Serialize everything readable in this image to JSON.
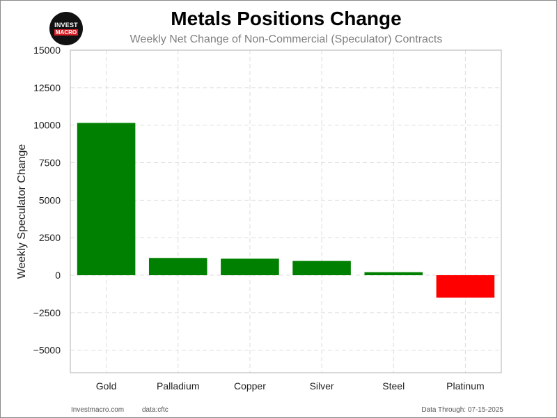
{
  "logo": {
    "line1": "INVEST",
    "line2": "MACRO"
  },
  "footer": {
    "site": "Investmacro.com",
    "source": "data:cftc",
    "through": "Data Through: 07-15-2025"
  },
  "colors": {
    "positive": "#008000",
    "negative": "#ff0000",
    "grid": "#dddddd"
  },
  "chart_data": {
    "type": "bar",
    "title": "Metals Positions Change",
    "subtitle": "Weekly Net Change of Non-Commercial (Speculator) Contracts",
    "xlabel": "",
    "ylabel": "Weekly Speculator Change",
    "categories": [
      "Gold",
      "Palladium",
      "Copper",
      "Silver",
      "Steel",
      "Platinum"
    ],
    "values": [
      10150,
      1150,
      1100,
      950,
      200,
      -1500
    ],
    "ylim": [
      -6500,
      15000
    ],
    "yticks": [
      15000,
      12500,
      10000,
      7500,
      5000,
      2500,
      0,
      -2500,
      -5000
    ],
    "ytick_labels": [
      "15000",
      "12500",
      "10000",
      "7500",
      "5000",
      "2500",
      "0",
      "−2500",
      "−5000"
    ],
    "grid": true,
    "legend": "none"
  }
}
